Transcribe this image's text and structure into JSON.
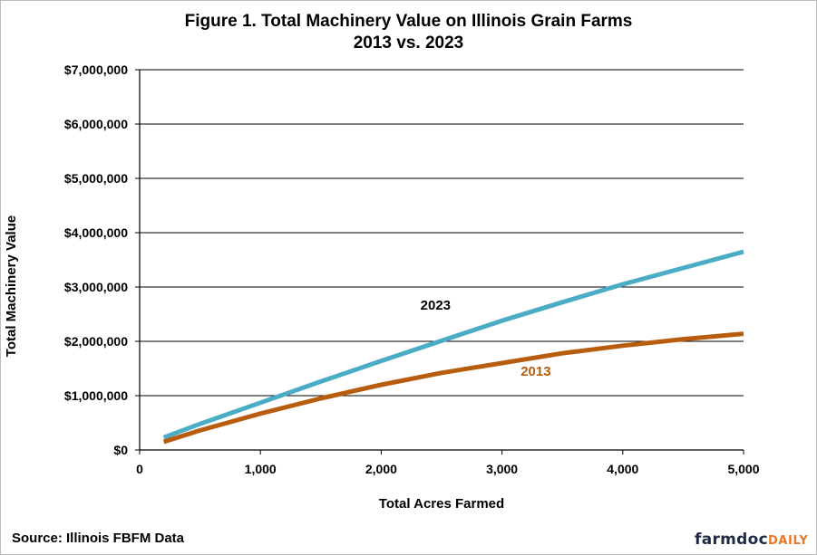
{
  "chart_data": {
    "type": "line",
    "title": "Figure 1. Total Machinery Value on Illinois Grain Farms",
    "subtitle": "2013 vs. 2023",
    "xlabel": "Total Acres Farmed",
    "ylabel": "Total Machinery Value",
    "xlim": [
      0,
      5000
    ],
    "ylim": [
      0,
      7000000
    ],
    "x_ticks": [
      "0",
      "1,000",
      "2,000",
      "3,000",
      "4,000",
      "5,000"
    ],
    "y_ticks": [
      "$0",
      "$1,000,000",
      "$2,000,000",
      "$3,000,000",
      "$4,000,000",
      "$5,000,000",
      "$6,000,000",
      "$7,000,000"
    ],
    "grid": "horizontal",
    "series": [
      {
        "name": "2023",
        "color": "#4bacc6",
        "x": [
          200,
          500,
          1000,
          1500,
          2000,
          2500,
          3000,
          3500,
          4000,
          4500,
          5000
        ],
        "values": [
          230000,
          480000,
          870000,
          1260000,
          1640000,
          2010000,
          2380000,
          2720000,
          3050000,
          3350000,
          3650000
        ]
      },
      {
        "name": "2013",
        "color": "#b85c0e",
        "x": [
          200,
          500,
          1000,
          1500,
          2000,
          2500,
          3000,
          3500,
          4000,
          4500,
          5000
        ],
        "values": [
          150000,
          360000,
          670000,
          950000,
          1200000,
          1420000,
          1600000,
          1780000,
          1920000,
          2040000,
          2140000
        ]
      }
    ],
    "annotations": [
      {
        "text": "2023",
        "x": 2450,
        "y": 2580000,
        "color": "#000000"
      },
      {
        "text": "2013",
        "x": 3280,
        "y": 1370000,
        "color": "#b85c0e"
      }
    ]
  },
  "source": "Source:  Illinois  FBFM Data",
  "logo": {
    "part1": "farmdoc",
    "part2": "DAILY"
  }
}
